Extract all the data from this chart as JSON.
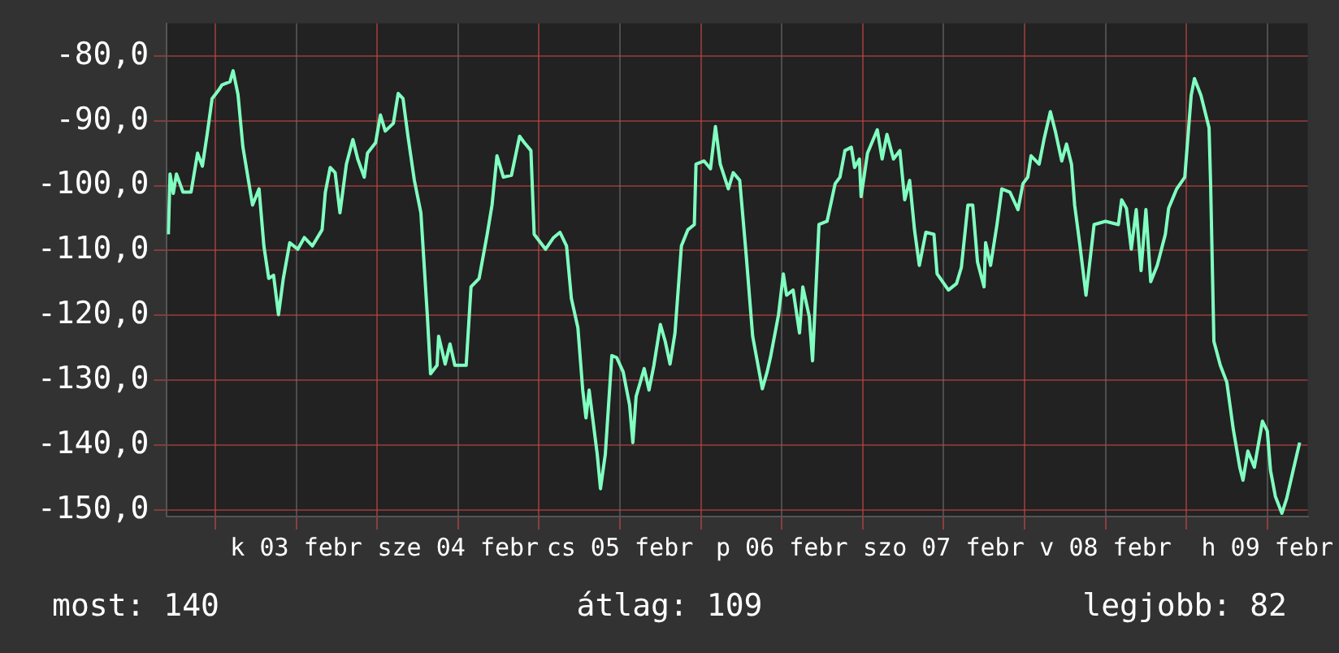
{
  "chart_data": {
    "type": "line",
    "xlim": [
      "--02-02T16:48",
      "--02-09T18:00"
    ],
    "ylim": [
      -151,
      -75
    ],
    "xticks": [
      {
        "value": "--02-03",
        "label": null
      },
      {
        "value": "--02-03T12:00",
        "label": "k 03 febr"
      },
      {
        "value": "--02-04",
        "label": null
      },
      {
        "value": "--02-04T12:00",
        "label": "sze 04 febr"
      },
      {
        "value": "--02-05",
        "label": null
      },
      {
        "value": "--02-05T12:00",
        "label": "cs 05 febr"
      },
      {
        "value": "--02-06",
        "label": null
      },
      {
        "value": "--02-06T12:00",
        "label": "p 06 febr"
      },
      {
        "value": "--02-07",
        "label": null
      },
      {
        "value": "--02-07T12:00",
        "label": "szo 07 febr"
      },
      {
        "value": "--02-08",
        "label": null
      },
      {
        "value": "--02-08T12:00",
        "label": "v 08 febr"
      },
      {
        "value": "--02-09",
        "label": null
      },
      {
        "value": "--02-09T12:00",
        "label": "h 09 febr"
      }
    ],
    "yticks": [
      {
        "value": -80,
        "label": "-80,0"
      },
      {
        "value": -90,
        "label": "-90,0"
      },
      {
        "value": -100,
        "label": "-100,0"
      },
      {
        "value": -110,
        "label": "-110,0"
      },
      {
        "value": -120,
        "label": "-120,0"
      },
      {
        "value": -130,
        "label": "-130,0"
      },
      {
        "value": -140,
        "label": "-140,0"
      },
      {
        "value": -150,
        "label": "-150,0"
      }
    ],
    "grid": true,
    "legend": false,
    "marker": "none",
    "line_style": "solid",
    "annotations": [
      "most: 140",
      "átlag: 109",
      "legjobb: 82"
    ],
    "series": [
      {
        "color": "#80ffc0",
        "x": [
          "--02-02T17:02",
          "--02-02T17:17",
          "--02-02T17:46",
          "--02-02T18:14",
          "--02-02T19:12",
          "--02-02T20:24",
          "--02-02T21:22",
          "--02-02T22:05",
          "--02-02T22:48",
          "--02-02T23:31",
          "--02-03T00:29",
          "--02-03T00:58",
          "--02-03T02:10",
          "--02-03T02:38",
          "--02-03T03:22",
          "--02-03T04:05",
          "--02-03T05:31",
          "--02-03T06:29",
          "--02-03T07:12",
          "--02-03T07:55",
          "--02-03T08:38",
          "--02-03T09:22",
          "--02-03T10:05",
          "--02-03T11:02",
          "--02-03T12:14",
          "--02-03T13:12",
          "--02-03T14:24",
          "--02-03T15:50",
          "--02-03T16:19",
          "--02-03T17:02",
          "--02-03T17:46",
          "--02-03T18:29",
          "--02-03T19:26",
          "--02-03T20:24",
          "--02-03T21:07",
          "--02-03T22:05",
          "--02-03T22:34",
          "--02-03T23:46",
          "--02-04T00:29",
          "--02-04T01:12",
          "--02-04T02:24",
          "--02-04T03:07",
          "--02-04T03:50",
          "--02-04T04:34",
          "--02-04T05:31",
          "--02-04T06:29",
          "--02-04T07:26",
          "--02-04T07:55",
          "--02-04T08:53",
          "--02-04T09:07",
          "--02-04T10:05",
          "--02-04T10:48",
          "--02-04T11:31",
          "--02-04T13:12",
          "--02-04T13:55",
          "--02-04T15:07",
          "--02-04T16:19",
          "--02-04T17:02",
          "--02-04T17:46",
          "--02-04T18:43",
          "--02-04T19:55",
          "--02-04T21:07",
          "--02-04T21:50",
          "--02-04T22:48",
          "--02-04T23:17",
          "--02-05T00:58",
          "--02-05T02:10",
          "--02-05T03:07",
          "--02-05T04:05",
          "--02-05T04:48",
          "--02-05T05:46",
          "--02-05T06:29",
          "--02-05T06:58",
          "--02-05T07:26",
          "--02-05T08:38",
          "--02-05T09:07",
          "--02-05T09:50",
          "--02-05T10:48",
          "--02-05T11:31",
          "--02-05T12:29",
          "--02-05T13:26",
          "--02-05T13:55",
          "--02-05T14:24",
          "--02-05T15:36",
          "--02-05T16:19",
          "--02-05T17:02",
          "--02-05T18:00",
          "--02-05T18:43",
          "--02-05T19:26",
          "--02-05T20:10",
          "--02-05T21:07",
          "--02-05T22:05",
          "--02-05T23:02",
          "--02-05T23:17",
          "--02-06T00:29",
          "--02-06T01:26",
          "--02-06T02:10",
          "--02-06T02:53",
          "--02-06T04:05",
          "--02-06T04:48",
          "--02-06T05:46",
          "--02-06T06:43",
          "--02-06T07:41",
          "--02-06T09:07",
          "--02-06T09:50",
          "--02-06T10:19",
          "--02-06T11:31",
          "--02-06T12:14",
          "--02-06T12:43",
          "--02-06T13:41",
          "--02-06T14:38",
          "--02-06T15:07",
          "--02-06T16:05",
          "--02-06T16:34",
          "--02-06T17:31",
          "--02-06T18:43",
          "--02-06T19:55",
          "--02-06T20:38",
          "--02-06T21:22",
          "--02-06T22:19",
          "--02-06T22:48",
          "--02-06T23:31",
          "--02-06T23:46",
          "--02-07T00:43",
          "--02-07T02:10",
          "--02-07T02:53",
          "--02-07T03:36",
          "--02-07T04:34",
          "--02-07T05:31",
          "--02-07T06:14",
          "--02-07T06:58",
          "--02-07T07:41",
          "--02-07T08:24",
          "--02-07T09:22",
          "--02-07T10:34",
          "--02-07T11:02",
          "--02-07T12:43",
          "--02-07T13:55",
          "--02-07T14:38",
          "--02-07T15:36",
          "--02-07T16:19",
          "--02-07T17:02",
          "--02-07T18:00",
          "--02-07T18:14",
          "--02-07T18:58",
          "--02-07T19:55",
          "--02-07T20:38",
          "--02-07T21:50",
          "--02-07T23:02",
          "--02-07T23:46",
          "--02-08T00:29",
          "--02-08T00:58",
          "--02-08T02:10",
          "--02-08T02:53",
          "--02-08T03:50",
          "--02-08T04:34",
          "--02-08T05:31",
          "--02-08T06:14",
          "--02-08T06:58",
          "--02-08T07:26",
          "--02-08T08:10",
          "--02-08T09:07",
          "--02-08T10:19",
          "--02-08T12:00",
          "--02-08T13:55",
          "--02-08T14:24",
          "--02-08T15:07",
          "--02-08T15:50",
          "--02-08T16:34",
          "--02-08T17:17",
          "--02-08T18:00",
          "--02-08T18:43",
          "--02-08T19:41",
          "--02-08T20:53",
          "--02-08T21:22",
          "--02-08T22:34",
          "--02-08T23:46",
          "--02-09T00:43",
          "--02-09T01:12",
          "--02-09T02:10",
          "--02-09T03:22",
          "--02-09T03:36",
          "--02-09T04:05",
          "--02-09T05:02",
          "--02-09T06:00",
          "--02-09T06:58",
          "--02-09T07:55",
          "--02-09T08:24",
          "--02-09T09:07",
          "--02-09T10:05",
          "--02-09T11:17",
          "--02-09T12:00",
          "--02-09T12:29",
          "--02-09T13:12",
          "--02-09T14:10",
          "--02-09T14:53",
          "--02-09T15:50",
          "--02-09T16:48"
        ],
        "values": [
          -107.5,
          -98.2,
          -101.2,
          -98.2,
          -101,
          -101,
          -95,
          -97,
          -92,
          -86.6,
          -85.3,
          -84.5,
          -84,
          -82.3,
          -86,
          -94,
          -103,
          -100.5,
          -109.3,
          -114.3,
          -113.8,
          -119.9,
          -114.3,
          -108.8,
          -109.8,
          -108,
          -109.3,
          -106.8,
          -101,
          -97.2,
          -98,
          -104.2,
          -96.7,
          -92.9,
          -95.9,
          -98.7,
          -95,
          -93.4,
          -89.1,
          -91.6,
          -90.4,
          -85.8,
          -86.6,
          -92.4,
          -99.2,
          -104.2,
          -119.9,
          -129,
          -127.7,
          -123.2,
          -127.5,
          -124.4,
          -127.7,
          -127.7,
          -115.6,
          -114.3,
          -107.5,
          -103,
          -95.4,
          -98.7,
          -98.4,
          -92.4,
          -93.4,
          -94.6,
          -107.5,
          -109.8,
          -108,
          -107.2,
          -109.3,
          -117.4,
          -121.9,
          -131.5,
          -135.8,
          -131.5,
          -141.4,
          -146.7,
          -141.4,
          -126.2,
          -126.5,
          -128.7,
          -133.8,
          -139.6,
          -132.5,
          -128.2,
          -131.5,
          -127.7,
          -121.4,
          -124,
          -127.5,
          -122.7,
          -109.3,
          -106.8,
          -106,
          -96.7,
          -96.2,
          -97.4,
          -90.9,
          -96.7,
          -100.5,
          -98,
          -99.2,
          -110.6,
          -123.2,
          -131.3,
          -128.7,
          -126.5,
          -119.9,
          -113.6,
          -116.9,
          -116.1,
          -122.7,
          -115.6,
          -120.2,
          -127,
          -106,
          -105.5,
          -99.7,
          -98.7,
          -94.6,
          -94.1,
          -97.2,
          -95.9,
          -101.7,
          -95,
          -91.4,
          -95.9,
          -92.1,
          -95.9,
          -94.6,
          -102.2,
          -99.2,
          -106.8,
          -112.3,
          -107.2,
          -107.5,
          -113.6,
          -116.1,
          -115.1,
          -112.6,
          -103,
          -103,
          -111.8,
          -115.6,
          -108.8,
          -112.3,
          -106,
          -100.5,
          -101,
          -103.7,
          -99.7,
          -98.7,
          -95.4,
          -96.7,
          -92.9,
          -88.6,
          -91.6,
          -96.2,
          -93.6,
          -96.7,
          -103,
          -108.8,
          -116.9,
          -106,
          -105.5,
          -106,
          -102.2,
          -103.5,
          -109.8,
          -103.7,
          -113.1,
          -103.7,
          -114.8,
          -112.3,
          -107.5,
          -103.5,
          -100.5,
          -98.7,
          -86.1,
          -83.5,
          -86.1,
          -91.1,
          -99.9,
          -124,
          -127.7,
          -130.3,
          -137.6,
          -143.4,
          -145.4,
          -140.9,
          -143.4,
          -136.3,
          -137.8,
          -143.9,
          -147.9,
          -150.5,
          -148.2,
          -143.9,
          -139.6
        ]
      }
    ]
  }
}
